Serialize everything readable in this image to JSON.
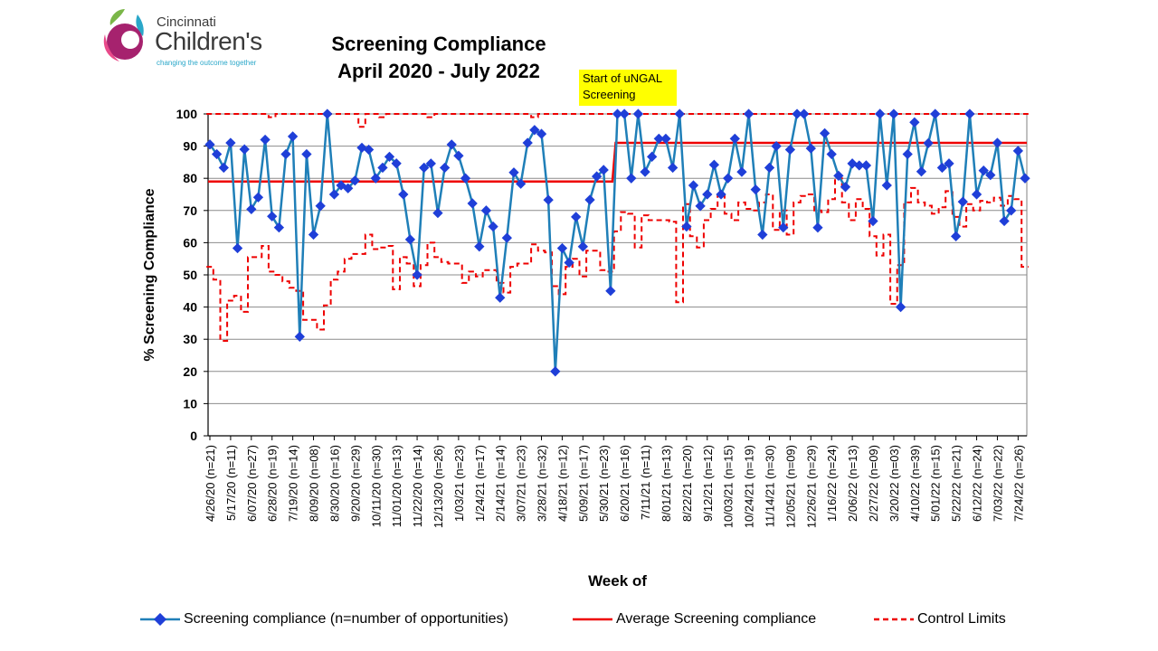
{
  "logo": {
    "line1": "Cincinnati",
    "line2": "Children's",
    "tagline": "changing the outcome together"
  },
  "colors": {
    "series": "#1f7fb8",
    "marker": "#1f3fd8",
    "average": "#ee0000",
    "limits": "#ee0000",
    "grid": "#8c8c8c"
  },
  "annotation": {
    "text_line1": "Start of uNGAL",
    "text_line2": "Screening",
    "color": "#ffff00"
  },
  "chart_data": {
    "type": "line",
    "title": "Screening Compliance",
    "subtitle": "April 2020 -  July 2022",
    "xlabel": "Week of",
    "ylabel": "% Screening Compliance",
    "ylim": [
      0,
      100
    ],
    "yticks": [
      0,
      10,
      20,
      30,
      40,
      50,
      60,
      70,
      80,
      90,
      100
    ],
    "grid": true,
    "legend_position": "bottom",
    "x_tick_labels": [
      "4/26/20 (n=21)",
      "5/17/20 (n=11)",
      "6/07/20 (n=27)",
      "6/28/20 (n=19)",
      "7/19/20 (n=14)",
      "8/09/20 (n=08)",
      "8/30/20 (n=16)",
      "9/20/20 (n=29)",
      "10/11/20 (n=30)",
      "11/01/20 (n=13)",
      "11/22/20 (n=14)",
      "12/13/20 (n=26)",
      "1/03/21 (n=23)",
      "1/24/21 (n=17)",
      "2/14/21 (n=14)",
      "3/07/21 (n=23)",
      "3/28/21 (n=32)",
      "4/18/21 (n=12)",
      "5/09/21 (n=17)",
      "5/30/21 (n=23)",
      "6/20/21 (n=16)",
      "7/11/21 (n=11)",
      "8/01/21 (n=13)",
      "8/22/21 (n=20)",
      "9/12/21 (n=12)",
      "10/03/21 (n=15)",
      "10/24/21 (n=19)",
      "11/14/21 (n=30)",
      "12/05/21 (n=09)",
      "12/26/21 (n=29)",
      "1/16/22 (n=24)",
      "2/06/22 (n=13)",
      "2/27/22 (n=09)",
      "3/20/22 (n=03)",
      "4/10/22 (n=39)",
      "5/01/22 (n=15)",
      "5/22/22 (n=21)",
      "6/12/22 (n=24)",
      "7/03/22 (n=22)",
      "7/24/22 (n=26)"
    ],
    "series": [
      {
        "name": "Screening compliance (n=number of opportunities)",
        "values": [
          90.5,
          87.5,
          83.3,
          91,
          58.3,
          89,
          70.4,
          74.1,
          92,
          68.2,
          64.7,
          87.5,
          93,
          30.8,
          87.5,
          62.5,
          71.4,
          100,
          75,
          77.8,
          76.9,
          79.3,
          89.5,
          88.9,
          80,
          83.3,
          86.7,
          84.6,
          75,
          61,
          50,
          83.3,
          84.6,
          69.2,
          83.3,
          90.5,
          87,
          80,
          72.2,
          58.8,
          70,
          65,
          42.9,
          61.5,
          81.8,
          78.3,
          91,
          95,
          93.8,
          73.3,
          20,
          58.3,
          53.8,
          68,
          58.8,
          73.3,
          80.6,
          82.6,
          45,
          100,
          100,
          80,
          100,
          82,
          86.7,
          92.3,
          92.3,
          83.3,
          100,
          65,
          77.8,
          71.4,
          75,
          84.2,
          75,
          80,
          92.3,
          82,
          100,
          76.5,
          62.5,
          83.3,
          90,
          64.7,
          88.9,
          100,
          100,
          89.3,
          64.7,
          94,
          87.5,
          80.8,
          77.3,
          84.6,
          84,
          84,
          66.7,
          100,
          77.8,
          100,
          40,
          87.5,
          97.4,
          82.1,
          90.9,
          100,
          83.3,
          84.6,
          62,
          72.7,
          100,
          75,
          82.4,
          81,
          91,
          66.7,
          70,
          88.5,
          80
        ]
      },
      {
        "name": "Average Screening compliance",
        "segments": [
          {
            "from_point": 1,
            "to_point": 59,
            "value": 79
          },
          {
            "from_point": 60,
            "to_point": 119,
            "value": 91
          }
        ]
      },
      {
        "name": "Control Limits",
        "upper": [
          100,
          100,
          100,
          100,
          100,
          100,
          100,
          100,
          100,
          99,
          100,
          100,
          100,
          100,
          100,
          100,
          100,
          100,
          100,
          100,
          100,
          100,
          96,
          100,
          100,
          99,
          100,
          100,
          100,
          100,
          100,
          100,
          99,
          100,
          100,
          100,
          100,
          100,
          100,
          100,
          100,
          100,
          100,
          100,
          100,
          100,
          100,
          99,
          100,
          100,
          100,
          100,
          100,
          100,
          100,
          100,
          100,
          100,
          100,
          100,
          100,
          100,
          100,
          100,
          100,
          100,
          100,
          100,
          100,
          100,
          100,
          100,
          100,
          100,
          100,
          100,
          100,
          100,
          100,
          100,
          100,
          100,
          100,
          100,
          100,
          100,
          100,
          100,
          100,
          100,
          100,
          100,
          100,
          100,
          100,
          100,
          100,
          100,
          100,
          100,
          100,
          100,
          100,
          100,
          100,
          100,
          100,
          100,
          100,
          100,
          100,
          100,
          100,
          100,
          100,
          100,
          100,
          100,
          100
        ],
        "lower": [
          52.5,
          48.5,
          29.5,
          42,
          43.5,
          38.5,
          55.5,
          55.5,
          59,
          51,
          50,
          48,
          46,
          45,
          36,
          36,
          33,
          40.5,
          48.5,
          51,
          55,
          56.5,
          56.5,
          62.5,
          58,
          58.5,
          59,
          45.5,
          55.5,
          53.5,
          46.5,
          53,
          60,
          55.5,
          54,
          53.5,
          53.5,
          47.5,
          51,
          49.5,
          51.5,
          51.5,
          47.5,
          44.5,
          52.5,
          53.5,
          53.5,
          59.5,
          57.5,
          57,
          46.5,
          44,
          52.5,
          55,
          49.5,
          57.5,
          57.5,
          51.5,
          51,
          63.5,
          69.5,
          69,
          58.5,
          68.5,
          67,
          67,
          67,
          66.5,
          41.5,
          72,
          62,
          58.5,
          67,
          70.5,
          75,
          69,
          67,
          72.5,
          70.5,
          70,
          72.5,
          75,
          64,
          70,
          62.5,
          72.5,
          74.5,
          75,
          70,
          69.5,
          73.5,
          80,
          72.5,
          67,
          73.5,
          70.5,
          62,
          56,
          62.5,
          41,
          53,
          72.5,
          77,
          72.5,
          71.5,
          69,
          71,
          76,
          68,
          65,
          72,
          70,
          73,
          72.5,
          74,
          71.5,
          74.5,
          73.5,
          52.5
        ]
      }
    ]
  },
  "legend": {
    "item1": "Screening compliance (n=number of opportunities)",
    "item2": "Average Screening compliance",
    "item3": "Control Limits"
  }
}
